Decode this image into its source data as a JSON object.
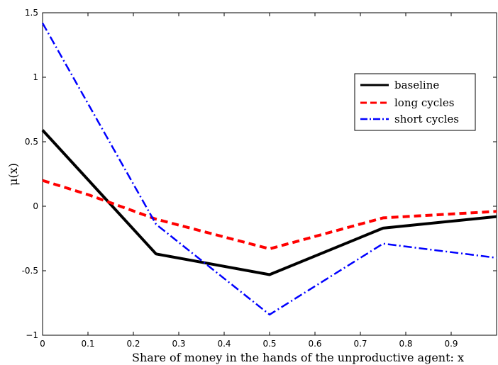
{
  "chart_data": {
    "type": "line",
    "xlabel": "Share of money in the hands of the unproductive agent: x",
    "ylabel": "μ(x)",
    "xlim": [
      0,
      1
    ],
    "ylim": [
      -1,
      1.5
    ],
    "x_ticks": [
      0,
      0.1,
      0.2,
      0.3,
      0.4,
      0.5,
      0.6,
      0.7,
      0.8,
      0.9
    ],
    "x_tick_labels": [
      "0",
      "0.1",
      "0.2",
      "0.3",
      "0.4",
      "0.5",
      "0.6",
      "0.7",
      "0.8",
      "0.9"
    ],
    "y_ticks": [
      -1,
      -0.5,
      0,
      0.5,
      1,
      1.5
    ],
    "y_tick_labels": [
      "−1",
      "-0.5",
      "0",
      "0.5",
      "1",
      "1.5"
    ],
    "grid": false,
    "legend_position": "top-right",
    "series": [
      {
        "name": "baseline",
        "color": "#000000",
        "style": "solid",
        "x": [
          0,
          0.25,
          0.5,
          0.75,
          1.0
        ],
        "y": [
          0.59,
          -0.37,
          -0.53,
          -0.17,
          -0.08
        ]
      },
      {
        "name": "long cycles",
        "color": "#ff0000",
        "style": "dashed",
        "x": [
          0,
          0.1,
          0.25,
          0.5,
          0.75,
          1.0
        ],
        "y": [
          0.2,
          0.09,
          -0.1,
          -0.33,
          -0.09,
          -0.04
        ]
      },
      {
        "name": "short cycles",
        "color": "#0000ff",
        "style": "dashdot",
        "x": [
          0,
          0.25,
          0.5,
          0.75,
          1.0
        ],
        "y": [
          1.42,
          -0.14,
          -0.84,
          -0.29,
          -0.4
        ]
      }
    ]
  }
}
